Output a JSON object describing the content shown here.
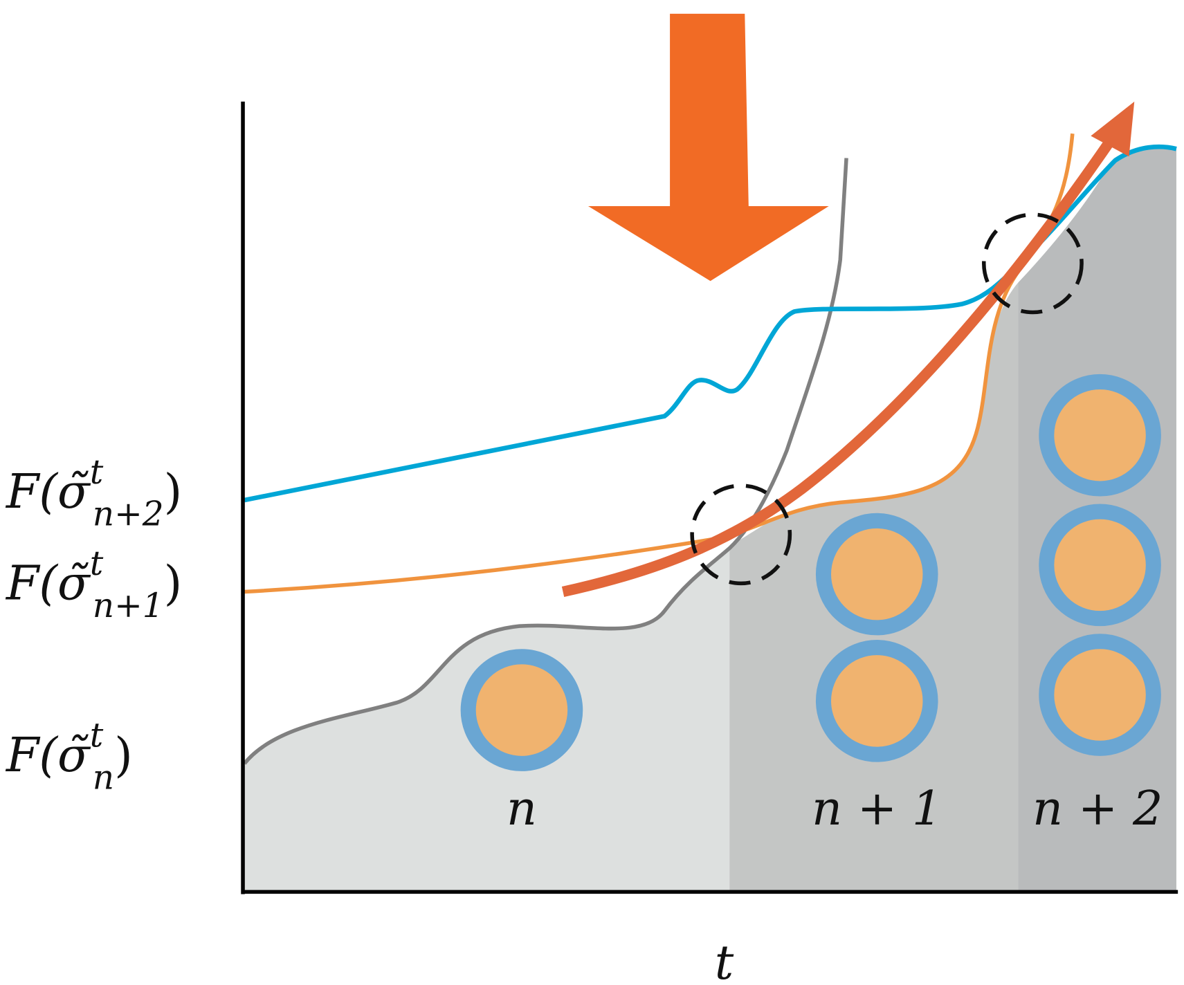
{
  "y_labels": [
    {
      "prefix": "F(σ̃",
      "sup": "t",
      "sub": "n+2",
      "suffix": ")"
    },
    {
      "prefix": "F(σ̃",
      "sup": "t",
      "sub": "n+1",
      "suffix": ")"
    },
    {
      "prefix": "F(σ̃",
      "sup": "t",
      "sub": "n",
      "suffix": ")"
    }
  ],
  "regions": [
    "n",
    "n + 1",
    "n + 2"
  ],
  "x_axis_label": "t"
}
